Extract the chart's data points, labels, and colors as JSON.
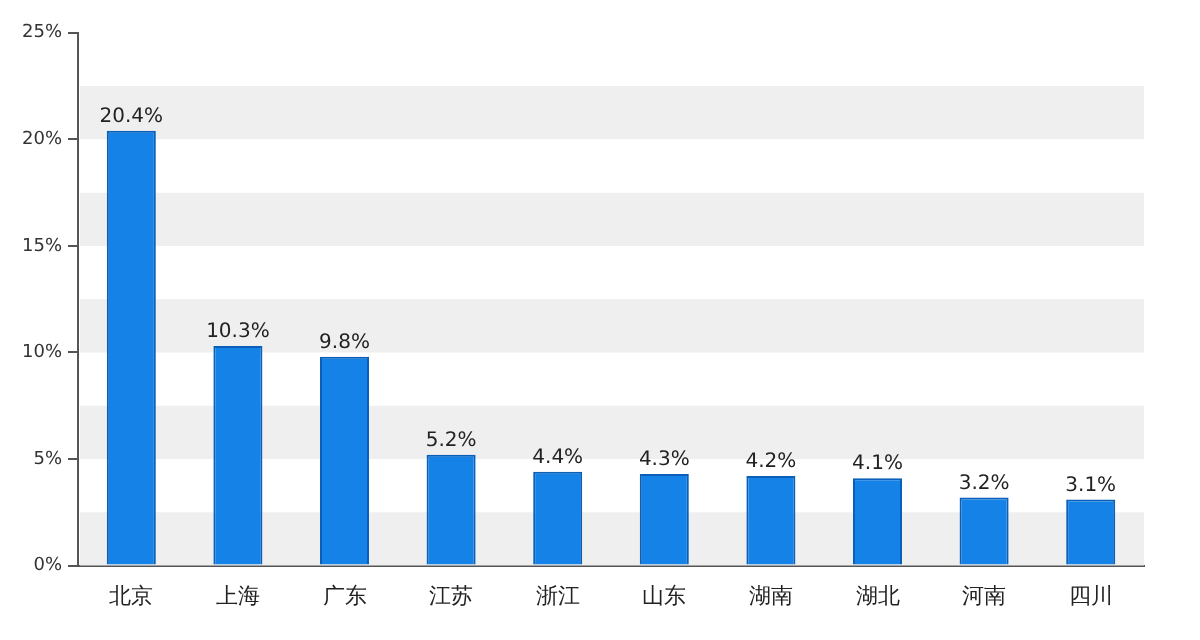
{
  "chart_data": {
    "type": "bar",
    "categories": [
      "北京",
      "上海",
      "广东",
      "江苏",
      "浙江",
      "山东",
      "湖南",
      "湖北",
      "河南",
      "四川"
    ],
    "values": [
      20.4,
      10.3,
      9.8,
      5.2,
      4.4,
      4.3,
      4.2,
      4.1,
      3.2,
      3.1
    ],
    "value_labels": [
      "20.4%",
      "10.3%",
      "9.8%",
      "5.2%",
      "4.4%",
      "4.3%",
      "4.2%",
      "4.1%",
      "3.2%",
      "3.1%"
    ],
    "color": "#1582e8",
    "ylim": [
      0,
      25
    ],
    "yticks": [
      {
        "value": 0,
        "label": "0%"
      },
      {
        "value": 5,
        "label": "5%"
      },
      {
        "value": 10,
        "label": "10%"
      },
      {
        "value": 15,
        "label": "15%"
      },
      {
        "value": 20,
        "label": "20%"
      },
      {
        "value": 25,
        "label": "25%"
      }
    ],
    "bands": [
      {
        "axis": "y",
        "from": 0,
        "to": 2.5,
        "color": "#efefef"
      },
      {
        "axis": "y",
        "from": 5,
        "to": 7.5,
        "color": "#efefef"
      },
      {
        "axis": "y",
        "from": 10,
        "to": 12.5,
        "color": "#efefef"
      },
      {
        "axis": "y",
        "from": 15,
        "to": 17.5,
        "color": "#efefef"
      },
      {
        "axis": "y",
        "from": 20,
        "to": 22.5,
        "color": "#efefef"
      }
    ],
    "legend": false
  }
}
